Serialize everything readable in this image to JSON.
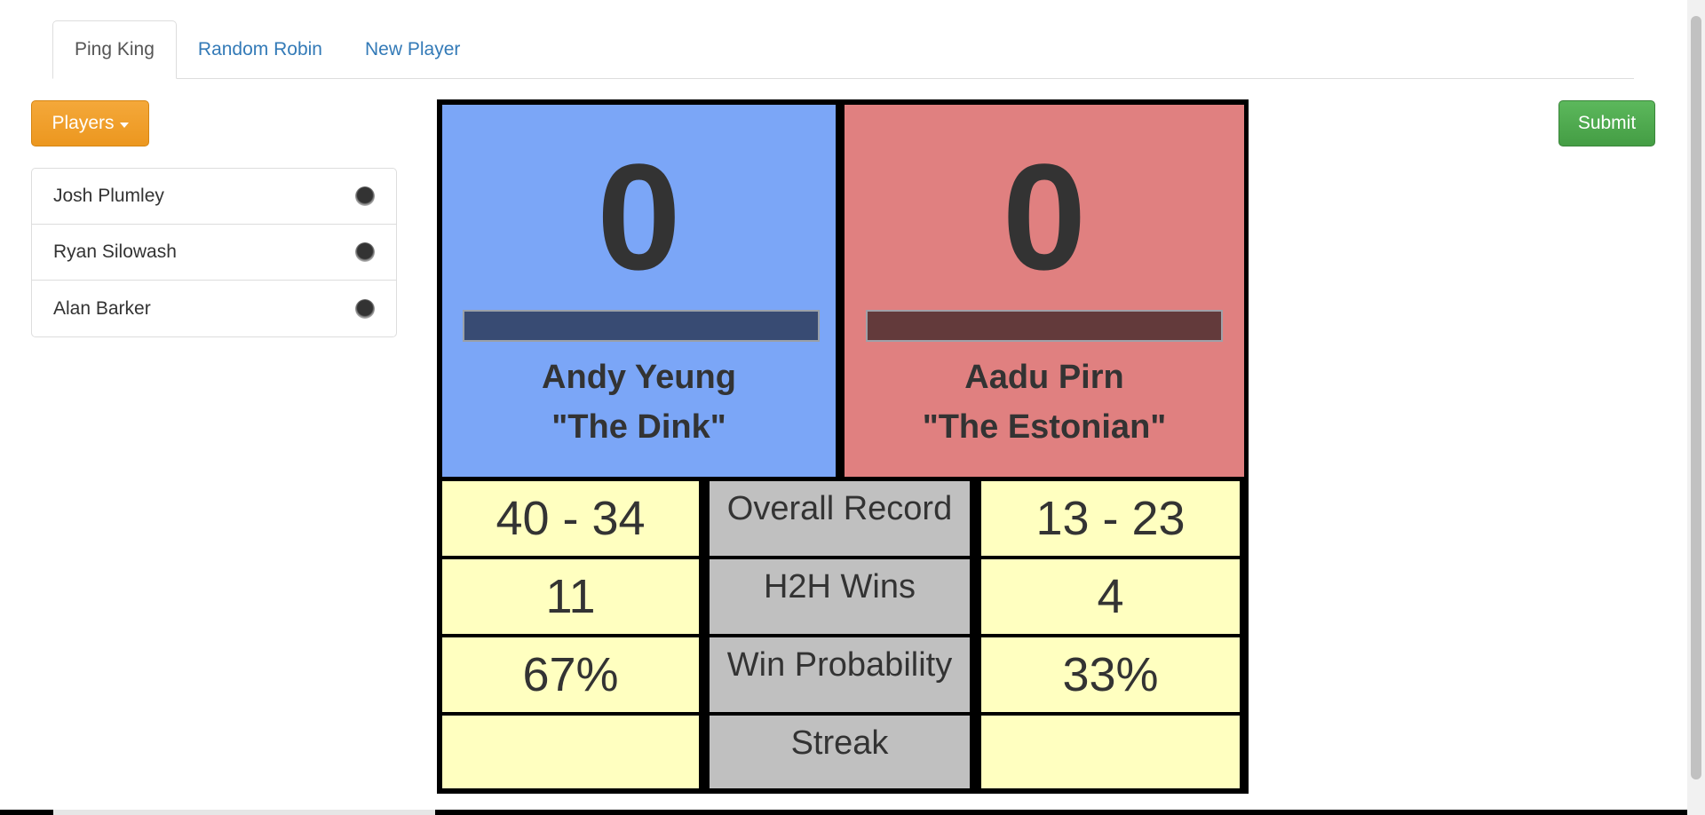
{
  "tabs": [
    {
      "label": "Ping King",
      "active": true
    },
    {
      "label": "Random Robin",
      "active": false
    },
    {
      "label": "New Player",
      "active": false
    }
  ],
  "players_button": {
    "label": "Players"
  },
  "submit_button": {
    "label": "Submit"
  },
  "players_list": [
    {
      "name": "Josh Plumley"
    },
    {
      "name": "Ryan Silowash"
    },
    {
      "name": "Alan Barker"
    }
  ],
  "left_player": {
    "score": "0",
    "name": "Andy Yeung",
    "nickname": "\"The Dink\"",
    "panel_color": "#7ba6f7",
    "bar_color": "#384b73"
  },
  "right_player": {
    "score": "0",
    "name": "Aadu Pirn",
    "nickname": "\"The Estonian\"",
    "panel_color": "#e08080",
    "bar_color": "#633a3b"
  },
  "stats": [
    {
      "label": "Overall Record",
      "left": "40 - 34",
      "right": "13 - 23"
    },
    {
      "label": "H2H Wins",
      "left": "11",
      "right": "4"
    },
    {
      "label": "Win Probability",
      "left": "67%",
      "right": "33%"
    },
    {
      "label": "Streak",
      "left": "",
      "right": ""
    }
  ],
  "colors": {
    "stat_value_bg": "#ffffc0",
    "stat_label_bg": "#c0c0c0",
    "submit": "#5cb85c",
    "players": "#f0ad4e"
  }
}
